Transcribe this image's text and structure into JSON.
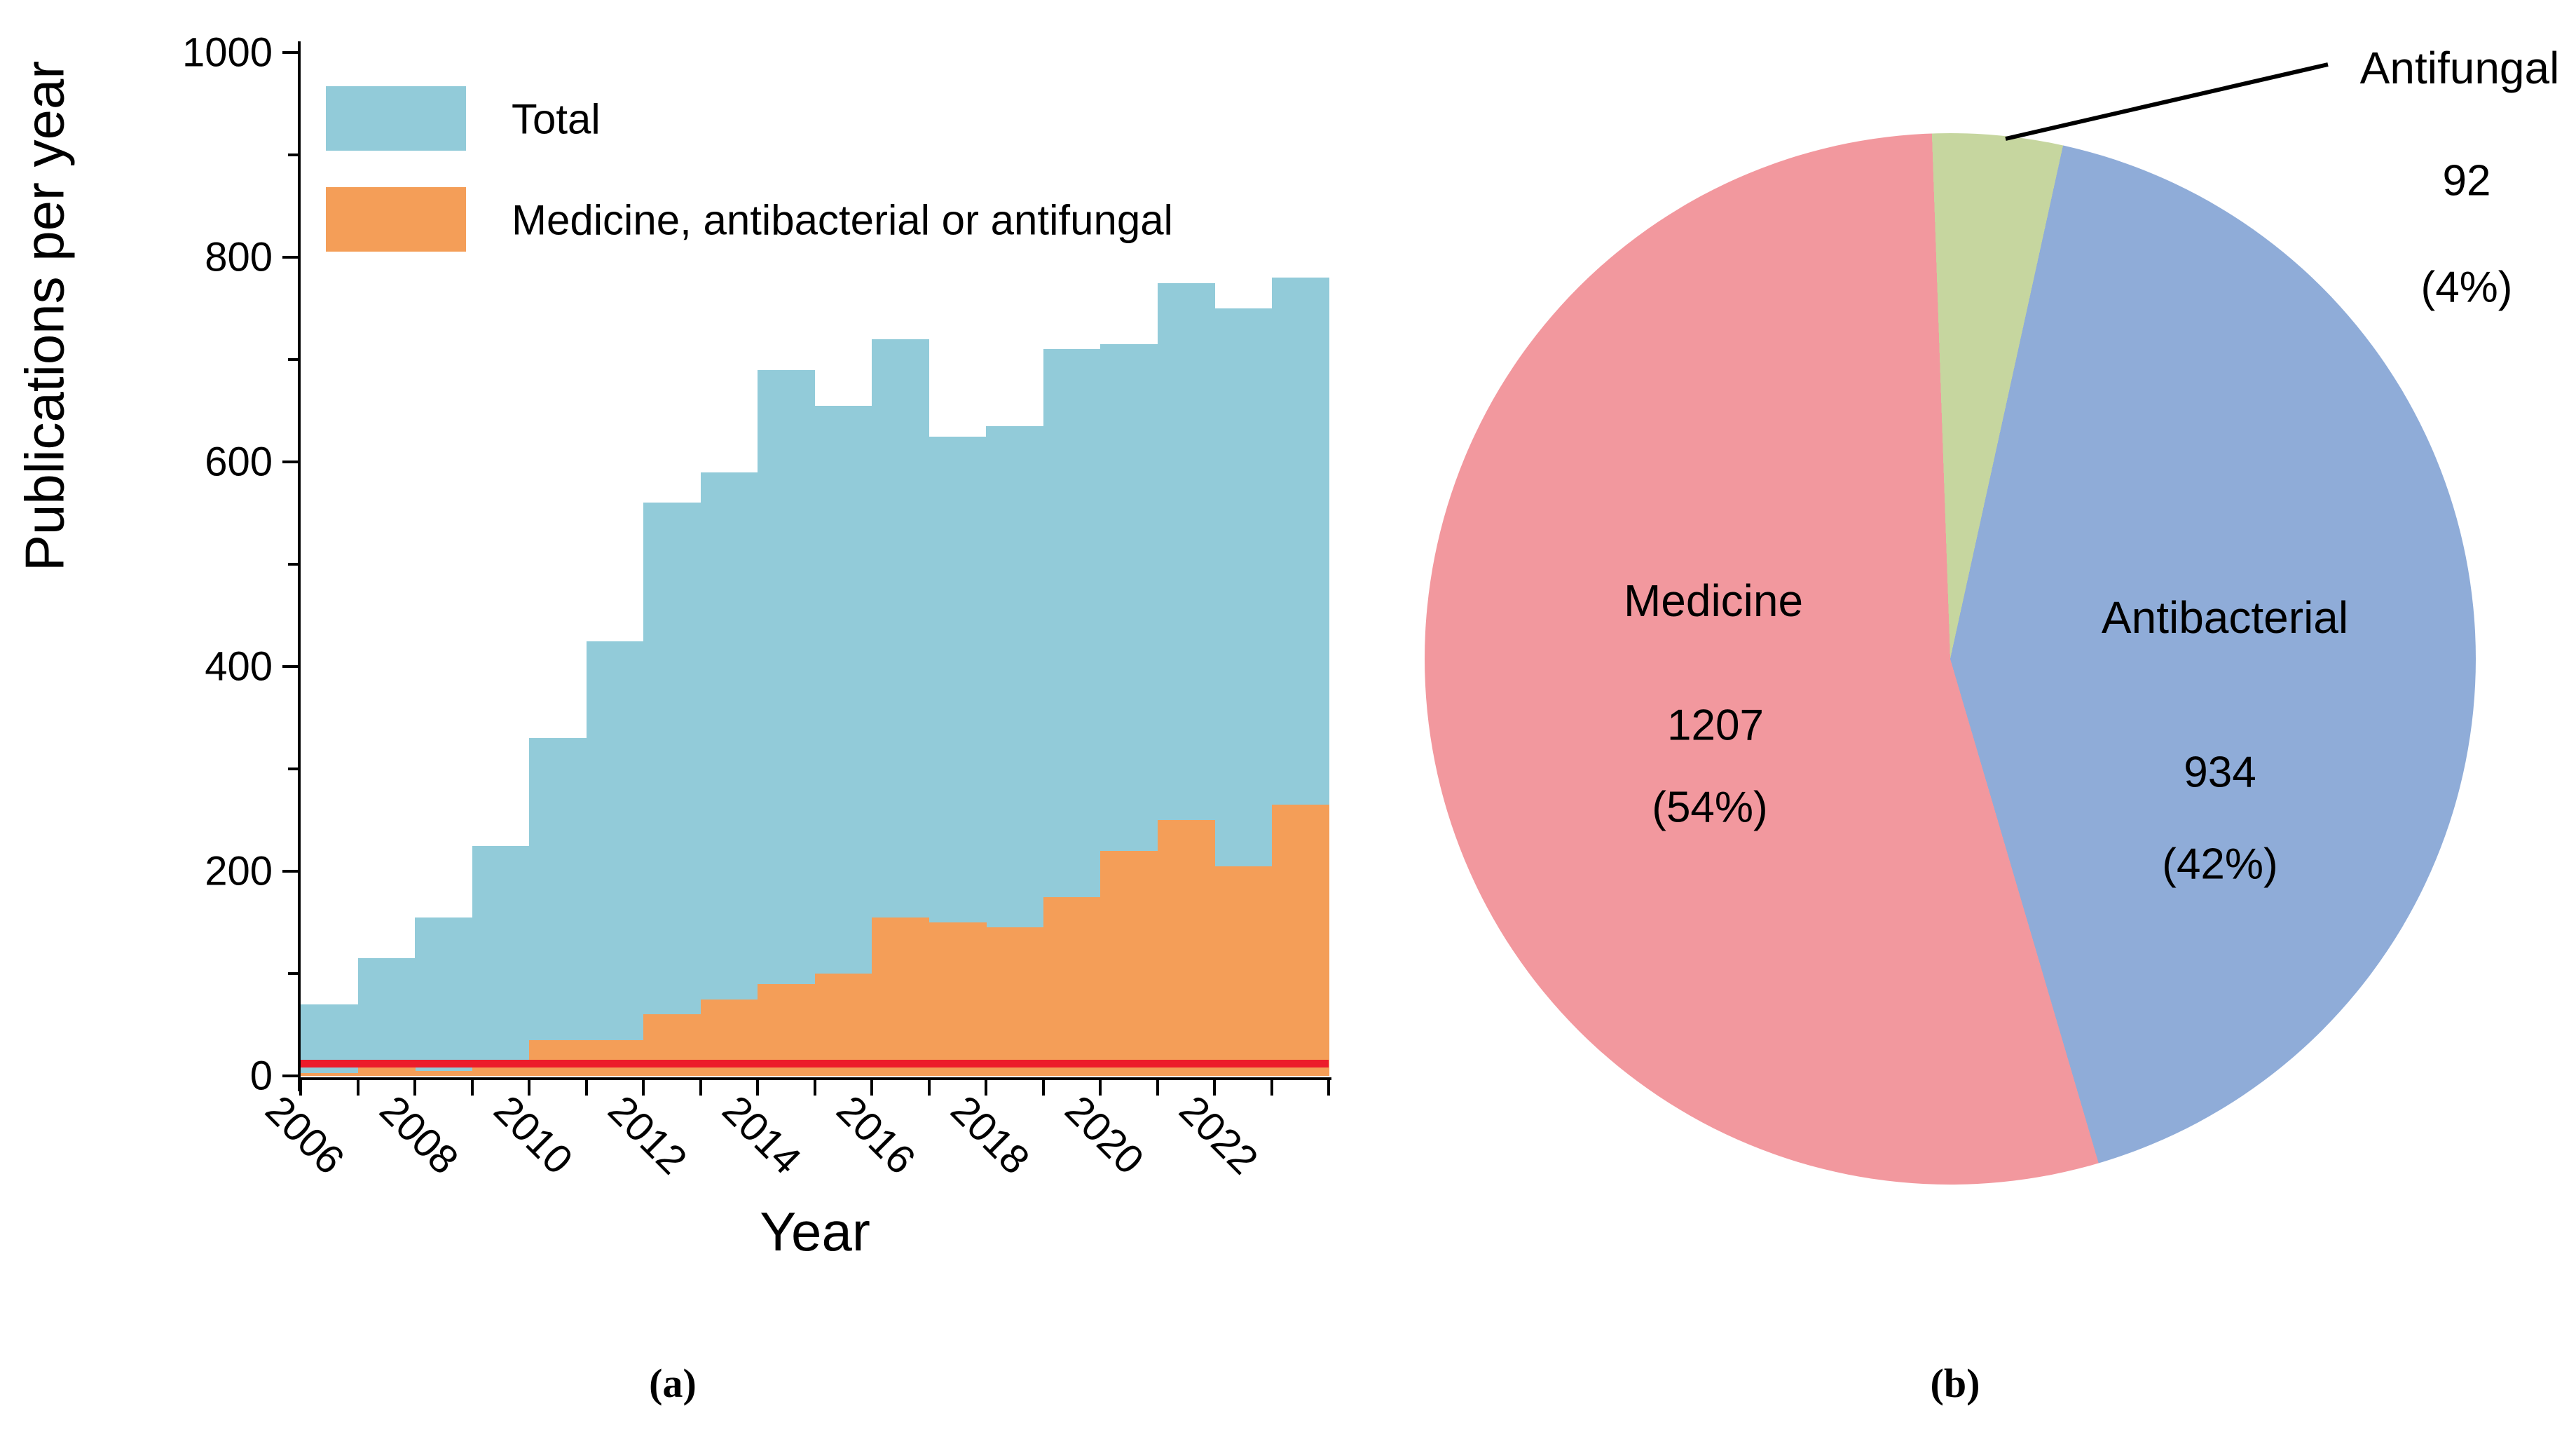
{
  "colors": {
    "bar_total": "#92CBD9",
    "bar_medicine": "#F49E58",
    "zero_line_red": "#EC1C2B",
    "pie_medicine": "#F2989E",
    "pie_antibacterial": "#8FACD8",
    "pie_antifungal": "#C6D69F",
    "axis": "#000000"
  },
  "panel_a": {
    "caption": "(a)",
    "y_axis_title": "Publications per year",
    "x_axis_title": "Year",
    "y_tick_labels": [
      "0",
      "200",
      "400",
      "600",
      "800",
      "1000"
    ],
    "x_tick_labels": [
      "2006",
      "2008",
      "2010",
      "2012",
      "2014",
      "2016",
      "2018",
      "2020",
      "2022"
    ],
    "legend": [
      {
        "label": "Total",
        "color": "#92CBD9"
      },
      {
        "label": "Medicine, antibacterial or antifungal",
        "color": "#F49E58"
      }
    ]
  },
  "panel_b": {
    "caption": "(b)"
  },
  "chart_data": [
    {
      "type": "bar",
      "title": "",
      "xlabel": "Year",
      "ylabel": "Publications per year",
      "ylim": [
        0,
        1000
      ],
      "y_major_ticks": [
        0,
        200,
        400,
        600,
        800,
        1000
      ],
      "y_minor_ticks": [
        100,
        300,
        500,
        700,
        900
      ],
      "categories": [
        2005,
        2006,
        2007,
        2008,
        2009,
        2010,
        2011,
        2012,
        2013,
        2014,
        2015,
        2016,
        2017,
        2018,
        2019,
        2020,
        2021,
        2022
      ],
      "labeled_x_ticks": [
        2006,
        2008,
        2010,
        2012,
        2014,
        2016,
        2018,
        2020,
        2022
      ],
      "grid": false,
      "legend_position": "top-left-inside",
      "series": [
        {
          "name": "Total",
          "color": "#92CBD9",
          "values": [
            70,
            115,
            155,
            225,
            330,
            425,
            560,
            590,
            690,
            655,
            720,
            625,
            635,
            710,
            715,
            775,
            750,
            780
          ]
        },
        {
          "name": "Medicine, antibacterial or antifungal",
          "color": "#F49E58",
          "values": [
            3,
            10,
            5,
            15,
            35,
            35,
            60,
            75,
            90,
            100,
            155,
            150,
            145,
            175,
            220,
            250,
            205,
            265
          ]
        }
      ],
      "zero_line": {
        "color": "#EC1C2B",
        "value": 0
      }
    },
    {
      "type": "pie",
      "title": "",
      "start_angle_deg_from_top": -2,
      "slices": [
        {
          "label": "Antifungal",
          "value": 92,
          "pct": 4,
          "pct_label": "(4%)",
          "color": "#C6D69F",
          "label_outside": true
        },
        {
          "label": "Antibacterial",
          "value": 934,
          "pct": 42,
          "pct_label": "(42%)",
          "color": "#8FACD8"
        },
        {
          "label": "Medicine",
          "value": 1207,
          "pct": 54,
          "pct_label": "(54%)",
          "color": "#F2989E"
        }
      ]
    }
  ]
}
